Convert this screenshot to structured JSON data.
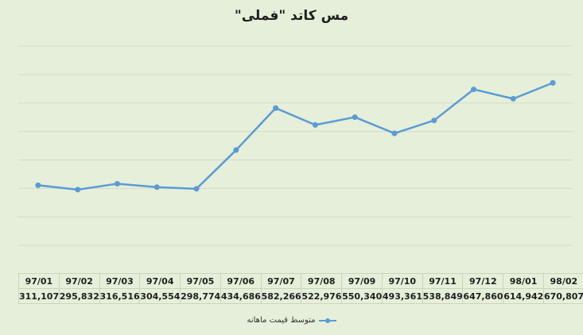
{
  "chart_data": {
    "type": "line",
    "title": "مس کاتد \"فملی\"",
    "categories": [
      "97/01",
      "97/02",
      "97/03",
      "97/04",
      "97/05",
      "97/06",
      "97/07",
      "97/08",
      "97/09",
      "97/10",
      "97/11",
      "97/12",
      "98/01",
      "98/02"
    ],
    "series": [
      {
        "name": "متوسط قیمت ماهانه",
        "values": [
          311107,
          295832,
          316516,
          304554,
          298774,
          434686,
          582266,
          522976,
          550340,
          493361,
          538849,
          647860,
          614942,
          670807
        ],
        "labels": [
          "311,107",
          "295,832",
          "316,516",
          "304,554",
          "298,774",
          "434,686",
          "582,266",
          "522,976",
          "550,340",
          "493,361",
          "538,849",
          "647,860",
          "614,942",
          "670,807"
        ],
        "color": "#5b9bd5"
      }
    ],
    "ylim": [
      0,
      800000
    ],
    "grid": true,
    "legend": "bottom",
    "data_table": true
  }
}
